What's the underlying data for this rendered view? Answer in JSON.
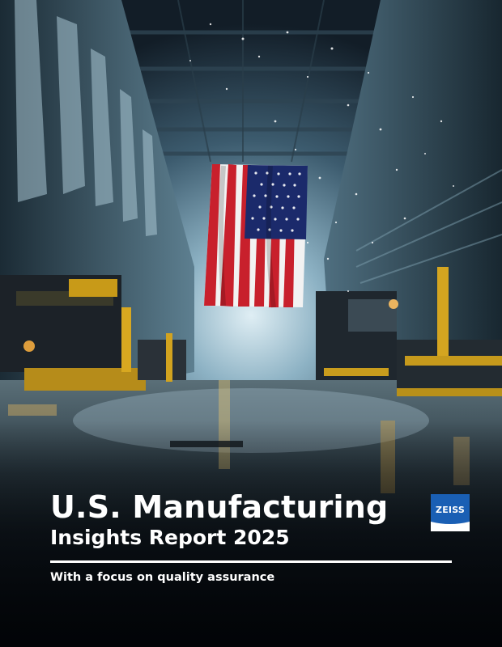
{
  "cover": {
    "title_line1": "U.S. Manufacturing",
    "title_line2": "Insights Report 2025",
    "subtitle": "With a focus on quality assurance",
    "logo_text": "ZEISS"
  },
  "colors": {
    "logo_blue": "#1a5fb4",
    "text": "#ffffff",
    "flag_red": "#c8202c",
    "flag_blue": "#1b2a6b"
  },
  "icons": [
    "zeiss-logo-icon",
    "american-flag-icon"
  ]
}
